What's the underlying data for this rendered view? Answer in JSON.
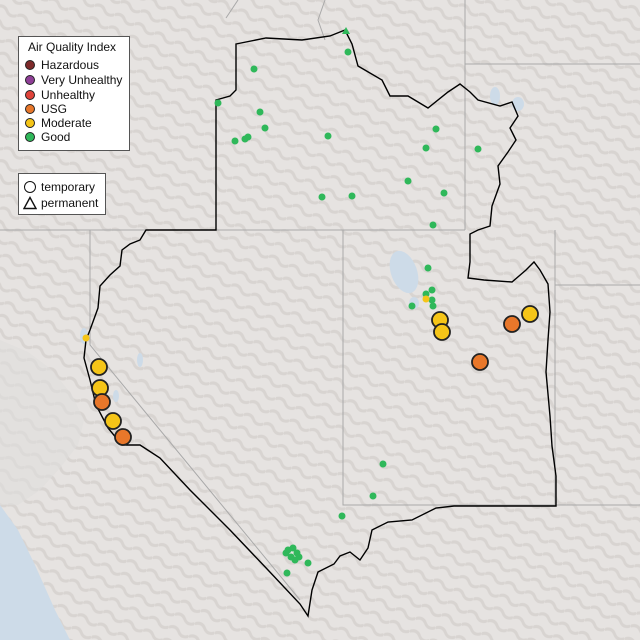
{
  "legend": {
    "title": "Air Quality Index",
    "categories": [
      {
        "label": "Hazardous",
        "color": "#7e2a2a"
      },
      {
        "label": "Very Unhealthy",
        "color": "#8f3f97"
      },
      {
        "label": "Unhealthy",
        "color": "#e0433a"
      },
      {
        "label": "USG",
        "color": "#e8772a"
      },
      {
        "label": "Moderate",
        "color": "#f5c518"
      },
      {
        "label": "Good",
        "color": "#2fb85a"
      }
    ],
    "monitor_types": [
      {
        "label": "temporary",
        "symbol": "circle-icon"
      },
      {
        "label": "permanent",
        "symbol": "triangle-icon"
      }
    ]
  },
  "map": {
    "background": "#e6e3e1",
    "water_color": "#cddbe8",
    "boundary_color": "#000000",
    "state_line_color": "#aaaaaa"
  }
}
